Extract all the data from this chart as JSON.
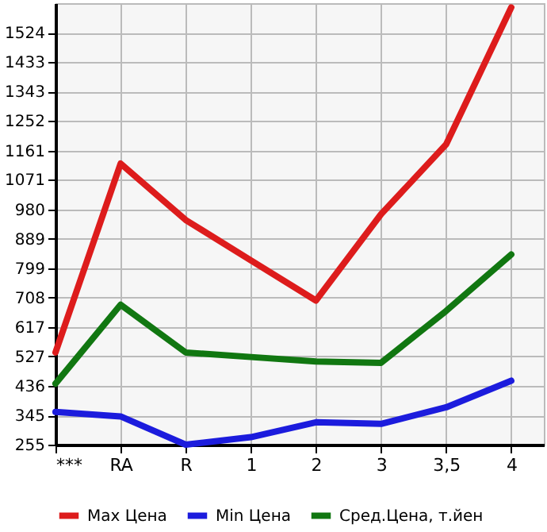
{
  "chart_data": {
    "type": "line",
    "categories": [
      "***",
      "RA",
      "R",
      "1",
      "2",
      "3",
      "3,5",
      "4"
    ],
    "series": [
      {
        "name": "Max Цена",
        "color": "#dd1c1c",
        "values": [
          539,
          1121,
          947,
          823,
          699,
          965,
          1180,
          1602
        ]
      },
      {
        "name": "Min Цена",
        "color": "#1c1cdd",
        "values": [
          356,
          342,
          255,
          278,
          324,
          319,
          370,
          452
        ]
      },
      {
        "name": "Сред.Цена, т.йен",
        "color": "#117711",
        "values": [
          443,
          686,
          539,
          525,
          511,
          507,
          667,
          841
        ]
      }
    ],
    "ylim": [
      255,
      1615
    ],
    "yticks": [
      255,
      345,
      436,
      527,
      617,
      708,
      799,
      889,
      980,
      1071,
      1161,
      1252,
      1343,
      1433,
      1524
    ],
    "grid": true,
    "legend": "bottom",
    "marker": "none",
    "line_style": "solid"
  }
}
